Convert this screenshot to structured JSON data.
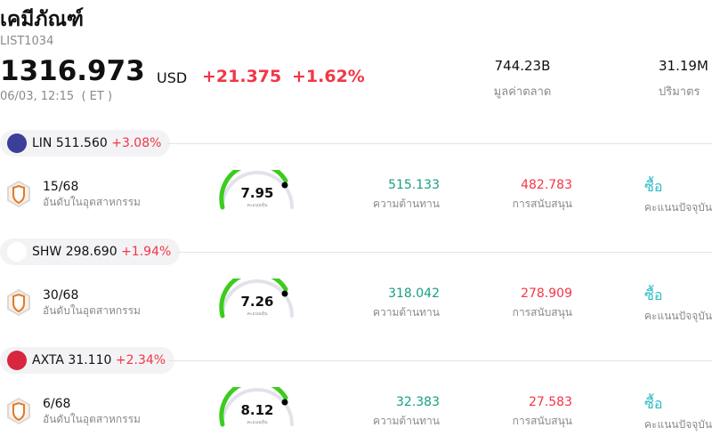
{
  "header": {
    "title": "เคมีภัณฑ์",
    "code": "LIST1034",
    "price": "1316.973",
    "currency": "USD",
    "change": "+21.375",
    "change_pct": "+1.62%",
    "time": "06/03, 12:15  ( ET )",
    "stats": [
      {
        "value": "744.23B",
        "label": "มูลค่าตลาด"
      },
      {
        "value": "31.19M",
        "label": "ปริมาตร"
      }
    ]
  },
  "stocks": [
    {
      "symbol": "LIN",
      "price": "511.560",
      "change_pct": "+3.08%",
      "rank": "15/68",
      "rank_label": "อันดับในอุตสาหกรรม",
      "score": "7.95",
      "score_label": "คะแนนหุ้น",
      "resistance": "515.133",
      "resistance_label": "ความต้านทาน",
      "support": "482.783",
      "support_label": "การสนับสนุน",
      "rating": "ซื้อ",
      "rating_label": "คะแนนปัจจุบัน"
    },
    {
      "symbol": "SHW",
      "price": "298.690",
      "change_pct": "+1.94%",
      "rank": "30/68",
      "rank_label": "อันดับในอุตสาหกรรม",
      "score": "7.26",
      "score_label": "คะแนนหุ้น",
      "resistance": "318.042",
      "resistance_label": "ความต้านทาน",
      "support": "278.909",
      "support_label": "การสนับสนุน",
      "rating": "ซื้อ",
      "rating_label": "คะแนนปัจจุบัน"
    },
    {
      "symbol": "AXTA",
      "price": "31.110",
      "change_pct": "+2.34%",
      "rank": "6/68",
      "rank_label": "อันดับในอุตสาหกรรม",
      "score": "8.12",
      "score_label": "คะแนนหุ้น",
      "resistance": "32.383",
      "resistance_label": "ความต้านทาน",
      "support": "27.583",
      "support_label": "การสนับสนุน",
      "rating": "ซื้อ",
      "rating_label": "คะแนนปัจจุบัน"
    }
  ]
}
